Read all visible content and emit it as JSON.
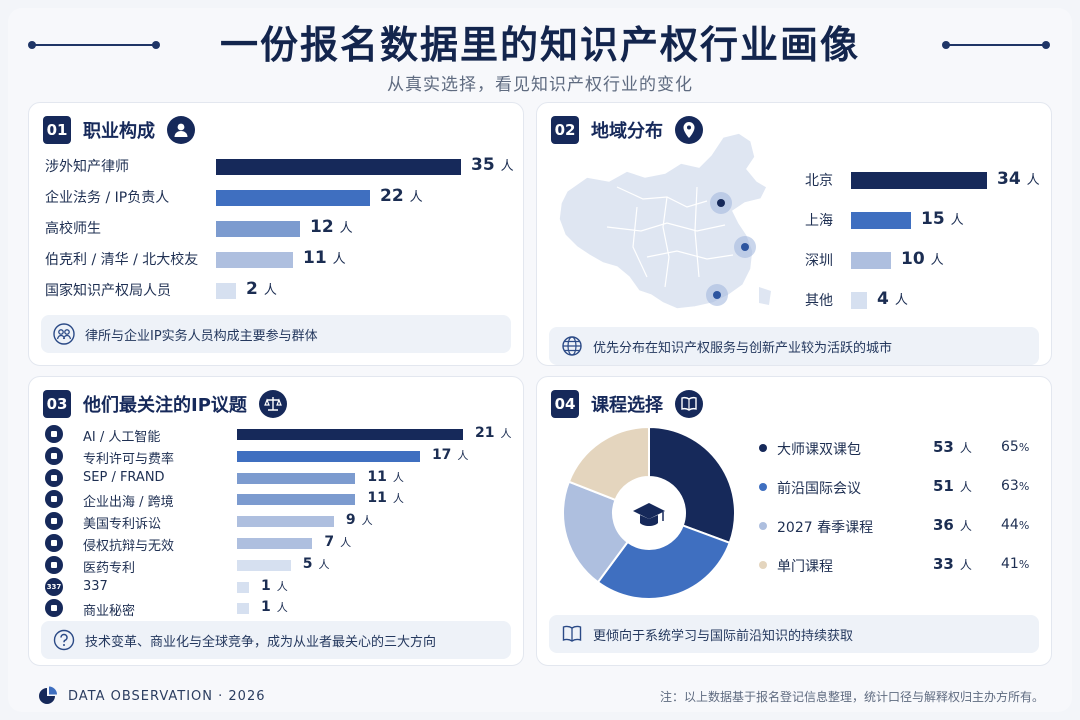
{
  "header": {
    "title": "一份报名数据里的知识产权行业画像",
    "subtitle": "从真实选择，看见知识产权行业的变化"
  },
  "colors": {
    "navy": "#16295a",
    "blue": "#3f6fc0",
    "mid": "#7c9bcf",
    "light": "#aebfdf",
    "pale": "#d6e0f0",
    "beige": "#e4d5be"
  },
  "unit": "人",
  "chart_data": [
    {
      "type": "bar",
      "title": "职业构成",
      "categories": [
        "涉外知产律师",
        "企业法务 / IP负责人",
        "高校师生",
        "伯克利 / 清华 / 北大校友",
        "国家知识产权局人员"
      ],
      "values": [
        35,
        22,
        12,
        11,
        2
      ],
      "unit": "人"
    },
    {
      "type": "bar",
      "title": "地域分布",
      "categories": [
        "北京",
        "上海",
        "深圳",
        "其他"
      ],
      "values": [
        34,
        15,
        10,
        4
      ],
      "unit": "人"
    },
    {
      "type": "bar",
      "title": "他们最关注的IP议题",
      "categories": [
        "AI / 人工智能",
        "专利许可与费率",
        "SEP / FRAND",
        "企业出海 / 跨境",
        "美国专利诉讼",
        "侵权抗辩与无效",
        "医药专利",
        "337",
        "商业秘密"
      ],
      "values": [
        21,
        17,
        11,
        11,
        9,
        7,
        5,
        1,
        1
      ],
      "unit": "人"
    },
    {
      "type": "pie",
      "title": "课程选择",
      "categories": [
        "大师课双课包",
        "前沿国际会议",
        "2027 春季课程",
        "单门课程"
      ],
      "values": [
        53,
        51,
        36,
        33
      ],
      "percents": [
        "65",
        "63",
        "44",
        "41"
      ],
      "unit": "人"
    }
  ],
  "panels": {
    "p1": {
      "num": "01",
      "title": "职业构成",
      "note": "律所与企业IP实务人员构成主要参与群体"
    },
    "p2": {
      "num": "02",
      "title": "地域分布",
      "note": "优先分布在知识产权服务与创新产业较为活跃的城市"
    },
    "p3": {
      "num": "03",
      "title": "他们最关注的IP议题",
      "note": "技术变革、商业化与全球竞争，成为从业者最关心的三大方向"
    },
    "p4": {
      "num": "04",
      "title": "课程选择",
      "note": "更倾向于系统学习与国际前沿知识的持续获取"
    }
  },
  "topic_icons": [
    "chip-icon",
    "document-icon",
    "shield-icon",
    "globe-icon",
    "gavel-icon",
    "shield-check-icon",
    "pill-icon",
    "badge-337-icon",
    "lock-icon"
  ],
  "badge_337": "337",
  "footer": {
    "left": "DATA OBSERVATION · 2026",
    "right": "注：以上数据基于报名登记信息整理，统计口径与解释权归主办方所有。"
  }
}
